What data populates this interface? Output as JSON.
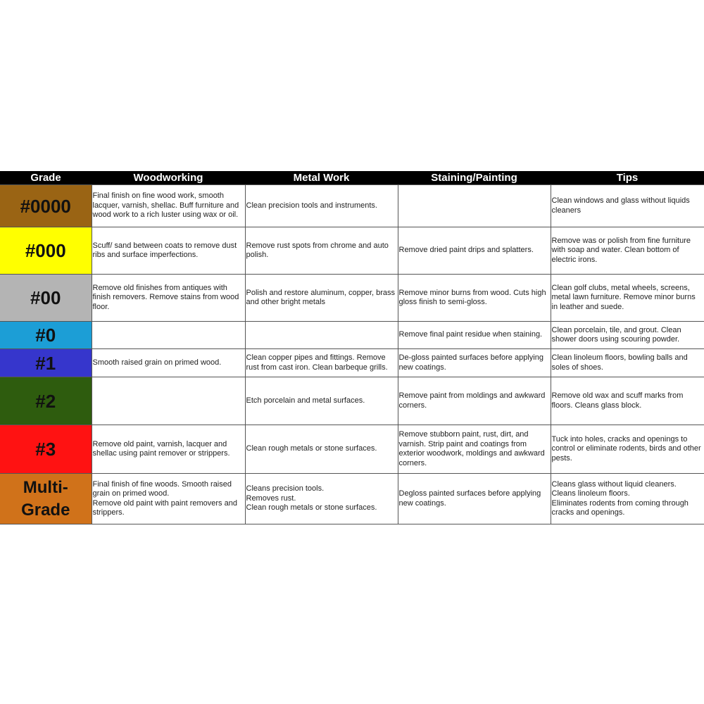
{
  "headers": [
    "Grade",
    "Woodworking",
    "Metal Work",
    "Staining/Painting",
    "Tips"
  ],
  "rows": [
    {
      "grade": "#0000",
      "color": "#9a6414",
      "woodworking": "Final finish on fine wood work, smooth lacquer, varnish, shellac.  Buff furniture and wood work to a rich luster using wax or oil.",
      "metal_work": "Clean precision tools and instruments.",
      "staining_painting": "",
      "tips": "Clean windows and glass without liquids cleaners"
    },
    {
      "grade": "#000",
      "color": "#ffff00",
      "woodworking": "Scuff/ sand between coats to remove dust ribs and surface imperfections.",
      "metal_work": "Remove rust spots from chrome and auto polish.",
      "staining_painting": "Remove dried paint drips and splatters.",
      "tips": "Remove was or polish from fine furniture with soap and water.  Clean bottom of electric irons."
    },
    {
      "grade": "#00",
      "color": "#b4b4b4",
      "woodworking": "Remove old finishes from antiques with finish removers.  Remove stains from wood floor.",
      "metal_work": "Polish and restore aluminum, copper, brass and other bright metals",
      "staining_painting": "Remove minor burns from wood.  Cuts high gloss finish to semi-gloss.",
      "tips": "Clean golf clubs, metal wheels, screens, metal lawn furniture.  Remove minor burns in leather and suede."
    },
    {
      "grade": "#0",
      "color": "#1c9ed6",
      "woodworking": "",
      "metal_work": "",
      "staining_painting": "Remove final paint residue when staining.",
      "tips": "Clean porcelain, tile, and grout.  Clean shower doors using scouring powder."
    },
    {
      "grade": "#1",
      "color": "#3636cc",
      "woodworking": "Smooth raised grain on primed wood.",
      "metal_work": "Clean copper pipes and fittings.  Remove rust from cast iron.  Clean barbeque grills.",
      "staining_painting": "De-gloss painted surfaces before applying new coatings.",
      "tips": "Clean linoleum floors, bowling balls and soles of shoes."
    },
    {
      "grade": "#2",
      "color": "#2e5c0e",
      "woodworking": "",
      "metal_work": "Etch porcelain and metal surfaces.",
      "staining_painting": "Remove paint from moldings and awkward corners.",
      "tips": "Remove old wax and scuff marks from floors.  Cleans glass block."
    },
    {
      "grade": "#3",
      "color": "#ff1212",
      "woodworking": "Remove old paint, varnish, lacquer and shellac using paint remover or strippers.",
      "metal_work": "Clean rough metals or stone surfaces.",
      "staining_painting": "Remove stubborn paint, rust, dirt, and varnish.  Strip paint and coatings from exterior woodwork, moldings and awkward corners.",
      "tips": "Tuck into holes, cracks and openings to control or eliminate rodents, birds and other pests."
    },
    {
      "grade": "Multi-\nGrade",
      "color": "#d0721a",
      "woodworking": "Final finish of fine woods. Smooth raised grain on primed wood.\nRemove old paint with paint removers and strippers.",
      "metal_work": "Cleans precision tools.\nRemoves rust.\nClean rough metals or stone surfaces.",
      "staining_painting": "Degloss painted surfaces before applying new coatings.",
      "tips": "Cleans glass without liquid cleaners.\nCleans linoleum floors.\nEliminates rodents from coming through cracks and openings."
    }
  ]
}
